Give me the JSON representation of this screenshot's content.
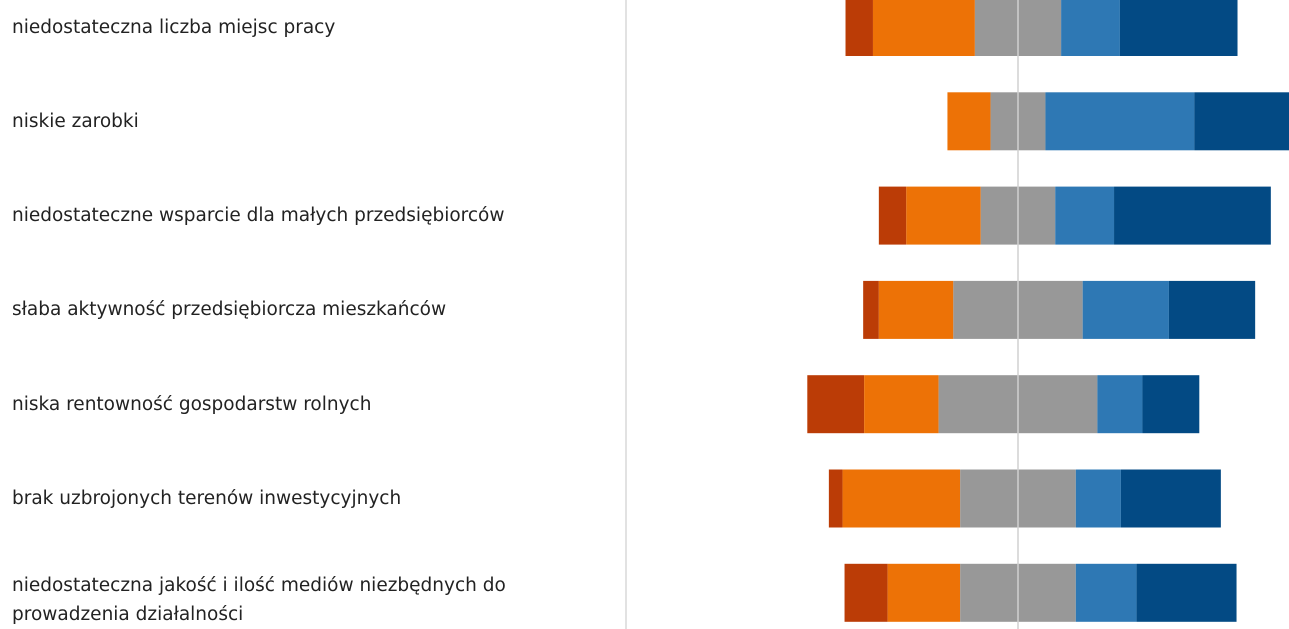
{
  "chart_data": {
    "type": "diverging_bar",
    "categories": [
      "niedostateczna liczba miejsc pracy",
      "niskie zarobki",
      "niedostateczne wsparcie dla małych przedsiębiorców",
      "słaba aktywność przedsiębiorcza mieszkańców",
      "niska rentowność gospodarstw rolnych",
      "brak uzbrojonych terenów inwestycyjnych",
      "niedostateczna jakość i ilość mediów niezbędnych do prowadzenia działalności"
    ],
    "series": [
      {
        "color": "#bb3c06",
        "values": [
          7,
          0,
          7,
          4,
          14.5,
          3.5,
          11
        ]
      },
      {
        "color": "#ed7206",
        "values": [
          26,
          11,
          19,
          19,
          19,
          30,
          18.5
        ]
      },
      {
        "color": "#989898",
        "values": [
          22,
          14,
          19,
          33,
          40.5,
          29.5,
          29.5
        ]
      },
      {
        "color": "#2e78b4",
        "values": [
          15,
          38,
          15,
          22,
          11.5,
          11.5,
          15.5
        ]
      },
      {
        "color": "#034a84",
        "values": [
          30,
          37,
          40,
          22,
          14.5,
          25.5,
          25.5
        ]
      }
    ]
  }
}
